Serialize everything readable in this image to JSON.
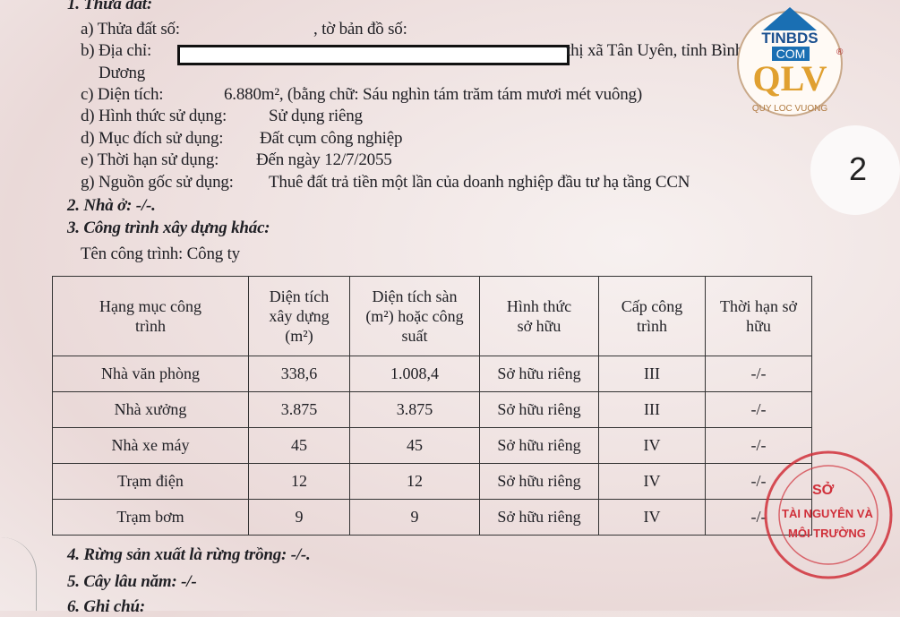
{
  "section1": {
    "title": "1. Thửa đất:",
    "a_label": "a) Thửa đất số:",
    "a_map": ", tờ bản đồ số:",
    "b_label": "b) Địa chỉ:",
    "b_tail": "thị xã Tân Uyên, tỉnh Bình",
    "b_cont": "Dương",
    "c_label": "c) Diện tích:",
    "c_value": "6.880m², (bằng chữ: Sáu nghìn tám trăm tám mươi mét vuông)",
    "d1_label": "d) Hình thức sử dụng:",
    "d1_value": "Sử dụng riêng",
    "d2_label": "d) Mục đích sử dụng:",
    "d2_value": "Đất cụm công nghiệp",
    "e_label": "e) Thời hạn sử dụng:",
    "e_value": "Đến ngày 12/7/2055",
    "g_label": "g) Nguồn gốc sử dụng:",
    "g_value": "Thuê đất trả tiền một lần của doanh nghiệp đầu tư hạ tầng CCN"
  },
  "section2": "2. Nhà ở: -/-.",
  "section3": {
    "title": "3. Công trình xây dựng khác:",
    "name_label": "Tên công trình: Công ty"
  },
  "table": {
    "headers": [
      "Hạng mục công trình",
      "Diện tích xây dựng (m²)",
      "Diện tích sàn (m²) hoặc công suất",
      "Hình thức sở hữu",
      "Cấp công trình",
      "Thời hạn sở hữu"
    ],
    "rows": [
      [
        "Nhà văn phòng",
        "338,6",
        "1.008,4",
        "Sở hữu riêng",
        "III",
        "-/-"
      ],
      [
        "Nhà xưởng",
        "3.875",
        "3.875",
        "Sở hữu riêng",
        "III",
        "-/-"
      ],
      [
        "Nhà xe máy",
        "45",
        "45",
        "Sở hữu riêng",
        "IV",
        "-/-"
      ],
      [
        "Trạm điện",
        "12",
        "12",
        "Sở hữu riêng",
        "IV",
        "-/-"
      ],
      [
        "Trạm bơm",
        "9",
        "9",
        "Sở hữu riêng",
        "IV",
        "-/-"
      ]
    ]
  },
  "section4": "4. Rừng sản xuất là rừng trồng: -/-.",
  "section5": "5. Cây lâu năm: -/-",
  "section6": "6. Ghi chú:",
  "page_number": "2",
  "logo": {
    "text": "TINBDS COM QLV QUY LOC VUONG",
    "colors": {
      "house": "#1a6fb3",
      "qlv": "#e0a030"
    }
  },
  "stamp": {
    "text": "SỞ TÀI NGUYÊN VÀ MÔI TRƯỜNG TỈNH BÌNH DƯƠNG",
    "color": "#d0303a"
  }
}
